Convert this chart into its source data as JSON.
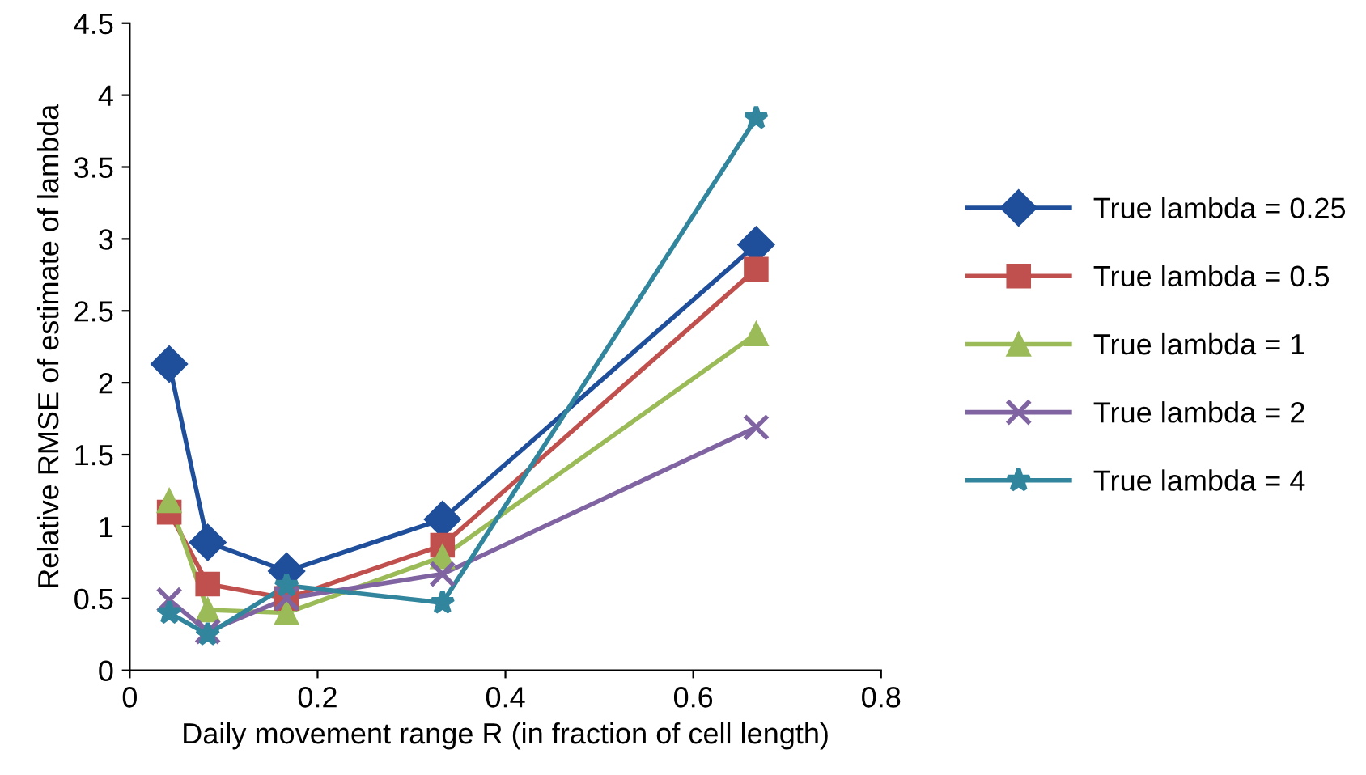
{
  "chart_data": {
    "type": "line",
    "xlabel": "Daily movement range R (in fraction of cell length)",
    "ylabel": "Relative RMSE of estimate of lambda",
    "x": [
      0.042,
      0.083,
      0.167,
      0.333,
      0.667
    ],
    "xlim": [
      0,
      0.8
    ],
    "xticks": [
      0,
      0.2,
      0.4,
      0.6,
      0.8
    ],
    "ylim": [
      0,
      4.5
    ],
    "yticks": [
      0,
      0.5,
      1,
      1.5,
      2,
      2.5,
      3,
      3.5,
      4,
      4.5
    ],
    "grid": false,
    "legend": "right",
    "series": [
      {
        "name": "True lambda = 0.25",
        "color": "#1f4e9a",
        "marker": "diamond",
        "values": [
          2.13,
          0.89,
          0.69,
          1.05,
          2.96
        ]
      },
      {
        "name": "True lambda = 0.5",
        "color": "#c0504d",
        "marker": "square",
        "values": [
          1.1,
          0.6,
          0.5,
          0.87,
          2.79
        ]
      },
      {
        "name": "True lambda = 1",
        "color": "#9bbb59",
        "marker": "triangle",
        "values": [
          1.18,
          0.42,
          0.4,
          0.79,
          2.34
        ]
      },
      {
        "name": "True lambda = 2",
        "color": "#8064a2",
        "marker": "cross",
        "values": [
          0.49,
          0.27,
          0.5,
          0.67,
          1.69
        ]
      },
      {
        "name": "True lambda = 4",
        "color": "#31859c",
        "marker": "star",
        "values": [
          0.4,
          0.25,
          0.59,
          0.47,
          3.84
        ]
      }
    ]
  }
}
